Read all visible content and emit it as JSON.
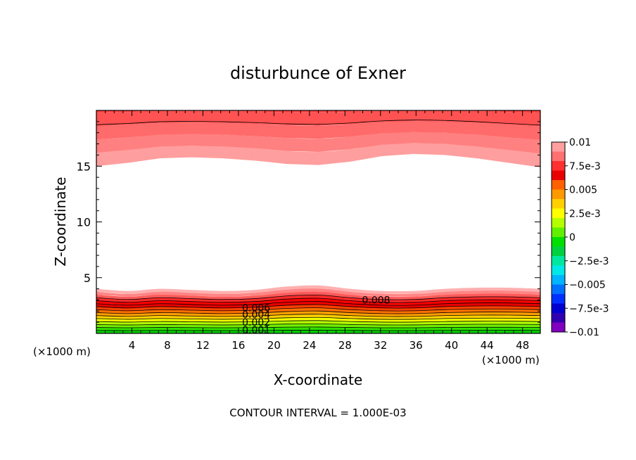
{
  "chart_data": {
    "type": "contour",
    "title": "disturbunce of Exner",
    "xlabel": "X-coordinate",
    "ylabel": "Z-coordinate",
    "x_unit_left": "(×1000 m)",
    "x_unit_right": "(×1000 m)",
    "footer": "CONTOUR INTERVAL = 1.000E-03",
    "xlim": [
      0,
      50
    ],
    "ylim": [
      0,
      20
    ],
    "x_ticks": [
      4,
      8,
      12,
      16,
      20,
      24,
      28,
      32,
      36,
      40,
      44,
      48
    ],
    "x_tick_labels": [
      "4",
      "8",
      "12",
      "16",
      "20",
      "24",
      "28",
      "32",
      "36",
      "40",
      "44",
      "48"
    ],
    "y_ticks": [
      5,
      10,
      15
    ],
    "y_tick_labels": [
      "5",
      "10",
      "15"
    ],
    "contour_interval": 0.001,
    "contour_labels": [
      {
        "text": "0.008",
        "x": 31.5,
        "z": 3.0
      },
      {
        "text": "0.006",
        "x": 18.0,
        "z": 2.3
      },
      {
        "text": "0.004",
        "x": 18.0,
        "z": 1.7
      },
      {
        "text": "0.002",
        "x": 18.0,
        "z": 1.0
      },
      {
        "text": "0.001",
        "x": 18.0,
        "z": 0.3
      }
    ],
    "colorbar": {
      "min": -0.01,
      "max": 0.01,
      "labels": [
        "0.01",
        "7.5e-3",
        "0.005",
        "2.5e-3",
        "0",
        "−2.5e-3",
        "−0.005",
        "−7.5e-3",
        "−0.01"
      ],
      "colors_top_to_bottom": [
        "#ff9e9e",
        "#ff7070",
        "#ff3030",
        "#e80000",
        "#ff6000",
        "#ff9900",
        "#ffd000",
        "#ffff00",
        "#b4ff00",
        "#60f000",
        "#00e000",
        "#00d040",
        "#00e8a0",
        "#00e8e8",
        "#00b4ff",
        "#0070ff",
        "#0030ff",
        "#0000d0",
        "#3000b0",
        "#8000c0"
      ]
    },
    "upper_band_bottom_z": [
      15.0,
      15.3,
      15.7,
      15.8,
      15.7,
      15.5,
      15.2,
      15.1,
      15.4,
      15.9,
      16.1,
      16.0,
      15.7,
      15.3,
      14.9
    ],
    "lower_band_top_z": [
      4.0,
      3.8,
      4.0,
      3.9,
      3.8,
      3.9,
      4.2,
      4.3,
      4.0,
      3.8,
      3.8,
      4.0,
      4.1,
      4.1,
      4.0
    ],
    "grid": false
  }
}
